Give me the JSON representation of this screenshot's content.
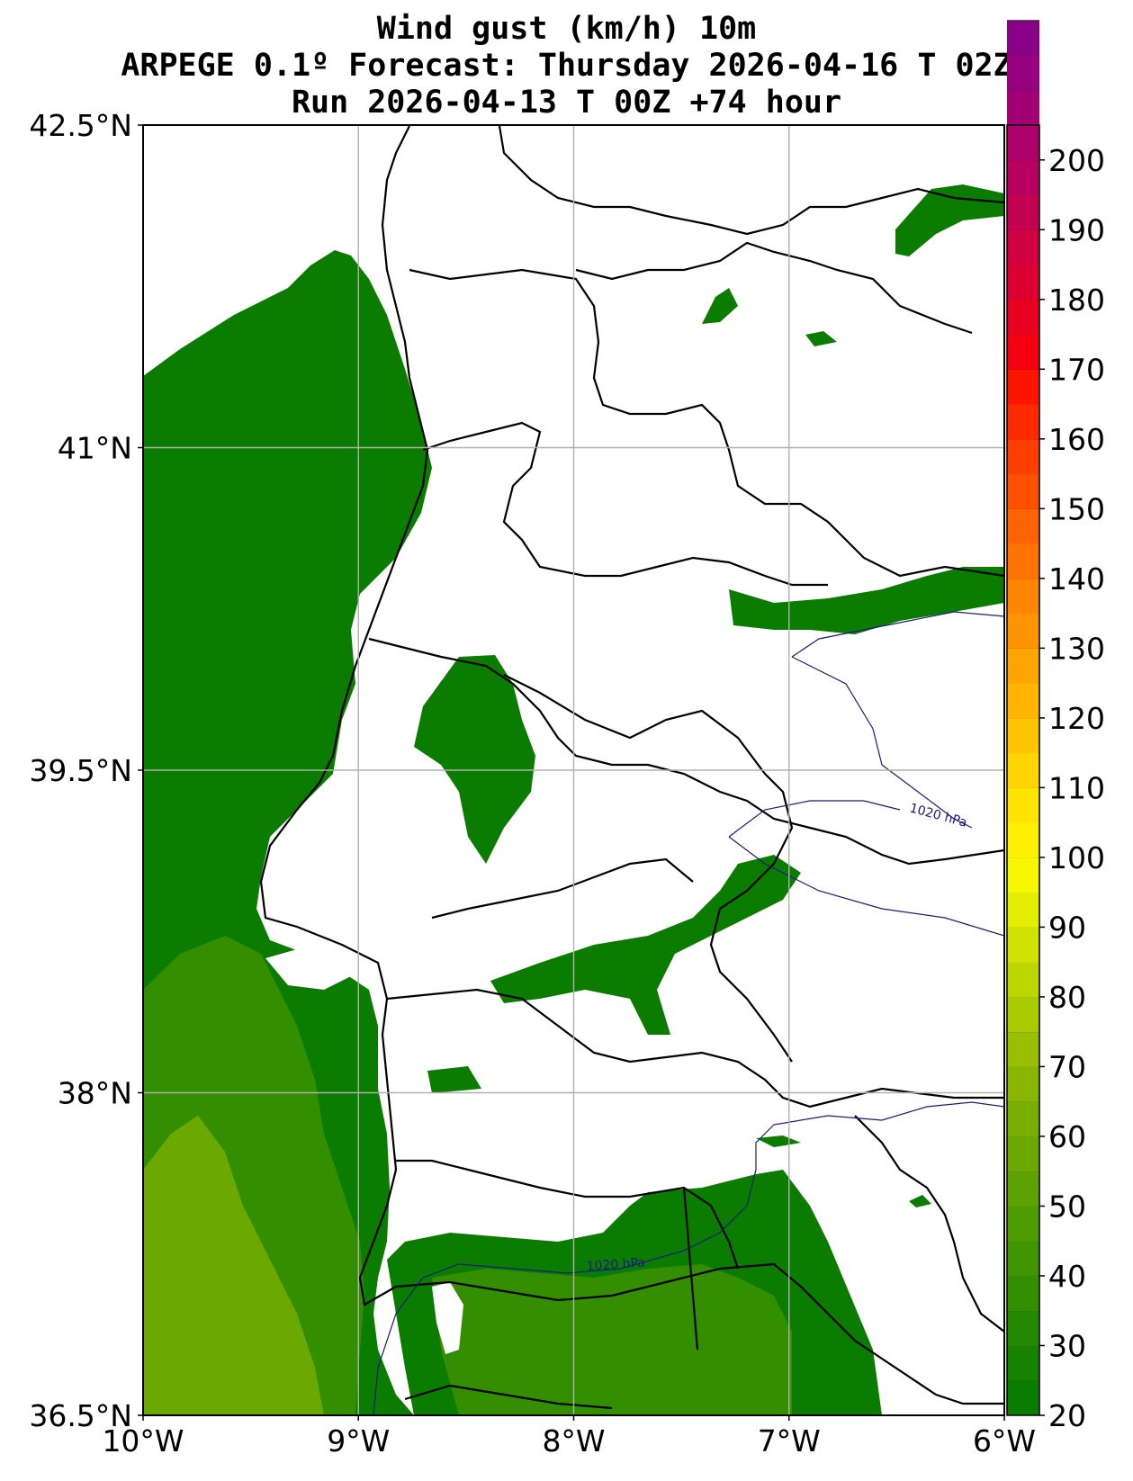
{
  "title": {
    "line1": "Wind gust (km/h) 10m",
    "line2": "ARPEGE 0.1º Forecast: Thursday 2026-04-16 T 02Z",
    "line3": "Run 2026-04-13 T 00Z +74 hour"
  },
  "map": {
    "lon_range": [
      -10,
      -6
    ],
    "lat_range": [
      36.5,
      42.5
    ],
    "x_ticks": [
      {
        "lon": -10,
        "label": "10°W"
      },
      {
        "lon": -9,
        "label": "9°W"
      },
      {
        "lon": -8,
        "label": "8°W"
      },
      {
        "lon": -7,
        "label": "7°W"
      },
      {
        "lon": -6,
        "label": "6°W"
      }
    ],
    "y_ticks": [
      {
        "lat": 42.5,
        "label": "42.5°N"
      },
      {
        "lat": 41,
        "label": "41°N"
      },
      {
        "lat": 39.5,
        "label": "39.5°N"
      },
      {
        "lat": 38,
        "label": "38°N"
      },
      {
        "lat": 36.5,
        "label": "36.5°N"
      }
    ],
    "isobar_labels": [
      "1020 hPa",
      "1020 hPa"
    ],
    "grid": true
  },
  "colorbar": {
    "min": 20,
    "max": 205,
    "step": 5,
    "labels": [
      20,
      30,
      40,
      50,
      60,
      70,
      80,
      90,
      100,
      110,
      120,
      130,
      140,
      150,
      160,
      170,
      180,
      190,
      200
    ],
    "colors": [
      "#0a7d00",
      "#178200",
      "#258900",
      "#338f00",
      "#419500",
      "#4f9c00",
      "#5da200",
      "#6ba800",
      "#79af00",
      "#88b600",
      "#98c000",
      "#aacb00",
      "#bcd600",
      "#cfe200",
      "#e4ee00",
      "#f7f800",
      "#fff000",
      "#ffe400",
      "#ffd400",
      "#ffc400",
      "#ffb400",
      "#ffa400",
      "#ff9400",
      "#ff8400",
      "#ff7300",
      "#ff6200",
      "#ff5000",
      "#ff3e00",
      "#ff2a00",
      "#ff1400",
      "#f40010",
      "#e80020",
      "#dc0030",
      "#d00040",
      "#c40050",
      "#b80060",
      "#ac006a",
      "#a00074",
      "#94007e",
      "#880086"
    ]
  }
}
